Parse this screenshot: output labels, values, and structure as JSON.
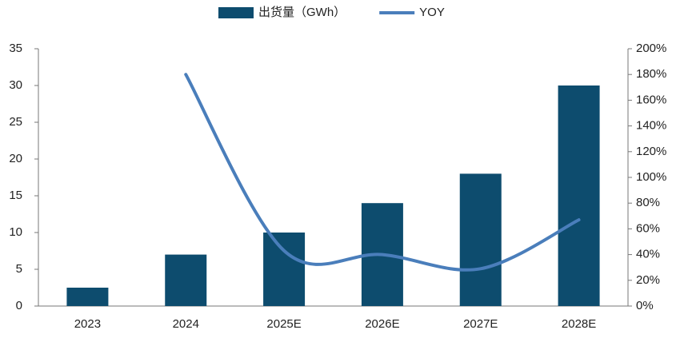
{
  "chart_data": {
    "type": "bar-line",
    "categories": [
      "2023",
      "2024",
      "2025E",
      "2026E",
      "2027E",
      "2028E"
    ],
    "series": [
      {
        "name": "出货量（GWh）",
        "type": "bar",
        "color": "#0d4c6e",
        "values": [
          2.5,
          7,
          10,
          14,
          18,
          30
        ]
      },
      {
        "name": "YOY",
        "type": "line",
        "axis": "y2",
        "color": "#4a7ebb",
        "values": [
          null,
          180,
          43,
          40,
          29,
          67
        ]
      }
    ],
    "ylim": [
      0,
      35
    ],
    "yticks": [
      0,
      5,
      10,
      15,
      20,
      25,
      30,
      35
    ],
    "y2lim": [
      0,
      200
    ],
    "y2ticks": [
      {
        "value": 0,
        "label": "0%"
      },
      {
        "value": 20,
        "label": "20%"
      },
      {
        "value": 40,
        "label": "40%"
      },
      {
        "value": 60,
        "label": "60%"
      },
      {
        "value": 80,
        "label": "80%"
      },
      {
        "value": 100,
        "label": "100%"
      },
      {
        "value": 120,
        "label": "120%"
      },
      {
        "value": 140,
        "label": "140%"
      },
      {
        "value": 160,
        "label": "160%"
      },
      {
        "value": 180,
        "label": "180%"
      },
      {
        "value": 200,
        "label": "200%"
      }
    ],
    "legend": "top",
    "grid": false
  }
}
